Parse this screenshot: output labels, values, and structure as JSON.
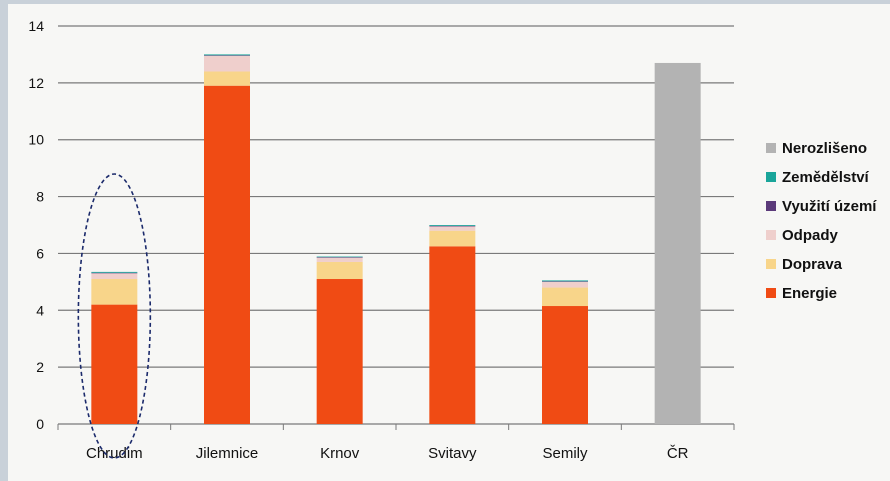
{
  "chart_data": {
    "type": "bar",
    "stacked": true,
    "title": "",
    "xlabel": "",
    "ylabel": "",
    "ylim": [
      0,
      14
    ],
    "yticks": [
      0,
      2,
      4,
      6,
      8,
      10,
      12,
      14
    ],
    "grid": true,
    "legend_position": "right",
    "categories": [
      "Chrudim",
      "Jilemnice",
      "Krnov",
      "Svitavy",
      "Semily",
      "ČR"
    ],
    "series": [
      {
        "name": "Energie",
        "color": "#f04b14",
        "values": [
          4.2,
          11.9,
          5.1,
          6.25,
          4.15,
          0
        ]
      },
      {
        "name": "Doprava",
        "color": "#f8d58a",
        "values": [
          0.9,
          0.5,
          0.6,
          0.55,
          0.65,
          0
        ]
      },
      {
        "name": "Odpady",
        "color": "#efcfcc",
        "values": [
          0.2,
          0.55,
          0.15,
          0.15,
          0.2,
          0
        ]
      },
      {
        "name": "Využití území",
        "color": "#5b3a7a",
        "values": [
          0.02,
          0.02,
          0.02,
          0.02,
          0.02,
          0
        ]
      },
      {
        "name": "Zemědělství",
        "color": "#1aa59a",
        "values": [
          0.03,
          0.03,
          0.02,
          0.03,
          0.03,
          0
        ]
      },
      {
        "name": "Nerozlišeno",
        "color": "#b3b3b3",
        "values": [
          0,
          0,
          0,
          0,
          0,
          12.7
        ]
      }
    ],
    "legend_order": [
      "Nerozlišeno",
      "Zemědělství",
      "Využití území",
      "Odpady",
      "Doprava",
      "Energie"
    ],
    "highlight": {
      "category": "Chrudim",
      "style": "dashed-ellipse",
      "color": "#1b2a6b"
    }
  }
}
